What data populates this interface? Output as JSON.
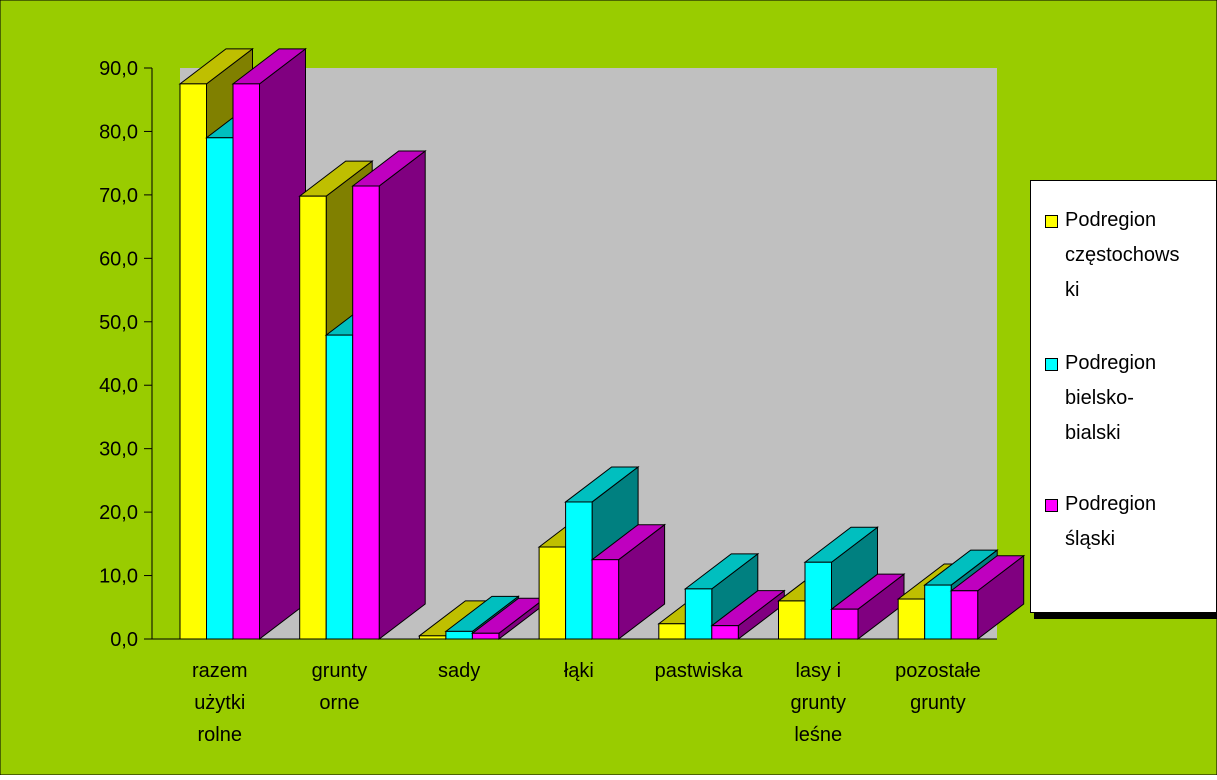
{
  "colors": {
    "background": "#99cc00",
    "plot_area": "#c0c0c0",
    "series": [
      "#ffff00",
      "#00ffff",
      "#ff00ff"
    ]
  },
  "chart_data": {
    "type": "bar",
    "categories": [
      [
        "razem",
        "użytki",
        "rolne"
      ],
      [
        "grunty",
        "orne"
      ],
      [
        "sady"
      ],
      [
        "łąki"
      ],
      [
        "pastwiska"
      ],
      [
        "lasy i",
        "grunty",
        "leśne"
      ],
      [
        "pozostałe",
        "grunty"
      ]
    ],
    "series": [
      {
        "name": "Podregion częstochowski",
        "values": [
          87.5,
          69.8,
          0.5,
          14.5,
          2.4,
          6.0,
          6.3
        ]
      },
      {
        "name": "Podregion bielsko-bialski",
        "values": [
          79.0,
          47.9,
          1.2,
          21.6,
          7.9,
          12.1,
          8.5
        ]
      },
      {
        "name": "Podregion śląski",
        "values": [
          87.5,
          71.4,
          0.9,
          12.5,
          2.1,
          4.7,
          7.6
        ]
      }
    ],
    "y_ticks": [
      "0,0",
      "10,0",
      "20,0",
      "30,0",
      "40,0",
      "50,0",
      "60,0",
      "70,0",
      "80,0",
      "90,0"
    ],
    "ylim": [
      0,
      90
    ],
    "legend": {
      "position": "right",
      "labels": [
        [
          "Podregion",
          "częstochows",
          "ki"
        ],
        [
          "Podregion",
          "bielsko-",
          "bialski"
        ],
        [
          "Podregion",
          "śląski"
        ]
      ]
    }
  }
}
